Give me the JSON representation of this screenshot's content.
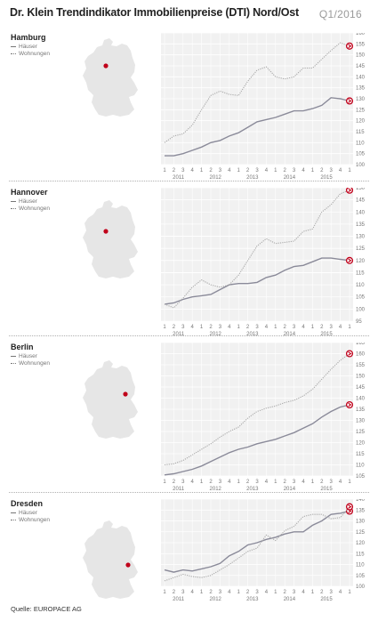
{
  "header": {
    "title": "Dr. Klein Trendindikator Immobilienpreise (DTI) Nord/Ost",
    "period": "Q1/2016"
  },
  "footer": {
    "source": "Quelle: EUROPACE AG"
  },
  "legend": {
    "houses": "Häuser",
    "apartments": "Wohnungen"
  },
  "colors": {
    "houses": "#8a8a99",
    "apartments": "#a9a9a9",
    "marker": "#c0001a",
    "map": "#e6e6e6",
    "plot_bg": "#f1f1f1",
    "grid": "#ffffff"
  },
  "chart_data": [
    {
      "type": "line",
      "city": "Hamburg",
      "x_quarters": [
        "1",
        "2",
        "3",
        "4",
        "1",
        "2",
        "3",
        "4",
        "1",
        "2",
        "3",
        "4",
        "1",
        "2",
        "3",
        "4",
        "1",
        "2",
        "3",
        "4",
        "1"
      ],
      "x_years": [
        "2011",
        "2012",
        "2013",
        "2014",
        "2015"
      ],
      "y_ticks": [
        100,
        105,
        110,
        115,
        120,
        125,
        130,
        135,
        140,
        145,
        150,
        155,
        160
      ],
      "ylim": [
        100,
        160
      ],
      "series": [
        {
          "name": "Häuser",
          "style": "solid",
          "values": [
            104,
            104,
            105,
            106.5,
            108,
            110,
            111,
            113,
            114.5,
            117,
            119.5,
            120.5,
            121.5,
            123,
            124.5,
            124.5,
            125.5,
            127,
            130.5,
            130,
            129
          ]
        },
        {
          "name": "Wohnungen",
          "style": "dotted",
          "values": [
            110,
            113,
            114,
            118,
            125,
            131.5,
            133.5,
            132,
            131.5,
            138,
            143,
            144.5,
            140,
            139,
            140,
            144,
            144,
            148,
            152,
            155.5,
            154
          ]
        }
      ]
    },
    {
      "type": "line",
      "city": "Hannover",
      "x_quarters": [
        "1",
        "2",
        "3",
        "4",
        "1",
        "2",
        "3",
        "4",
        "1",
        "2",
        "3",
        "4",
        "1",
        "2",
        "3",
        "4",
        "1",
        "2",
        "3",
        "4",
        "1"
      ],
      "x_years": [
        "2011",
        "2012",
        "2013",
        "2014",
        "2015"
      ],
      "y_ticks": [
        95,
        100,
        105,
        110,
        115,
        120,
        125,
        130,
        135,
        140,
        145,
        150
      ],
      "ylim": [
        95,
        150
      ],
      "series": [
        {
          "name": "Häuser",
          "style": "solid",
          "values": [
            102,
            102.5,
            104,
            105,
            105.5,
            106,
            108,
            110,
            110.5,
            110.5,
            111,
            113,
            114,
            116,
            117.5,
            118,
            119.5,
            121,
            121,
            120.5,
            120
          ]
        },
        {
          "name": "Wohnungen",
          "style": "dotted",
          "values": [
            102,
            100.5,
            104.5,
            109,
            112,
            110,
            109,
            110,
            114,
            120,
            126,
            129,
            127,
            127.5,
            128,
            132,
            133,
            140,
            143,
            147.5,
            149
          ]
        }
      ]
    },
    {
      "type": "line",
      "city": "Berlin",
      "x_quarters": [
        "1",
        "2",
        "3",
        "4",
        "1",
        "2",
        "3",
        "4",
        "1",
        "2",
        "3",
        "4",
        "1",
        "2",
        "3",
        "4",
        "1",
        "2",
        "3",
        "4",
        "1"
      ],
      "x_years": [
        "2011",
        "2012",
        "2013",
        "2014",
        "2015"
      ],
      "y_ticks": [
        105,
        110,
        115,
        120,
        125,
        130,
        135,
        140,
        145,
        150,
        155,
        160,
        165
      ],
      "ylim": [
        105,
        165
      ],
      "series": [
        {
          "name": "Häuser",
          "style": "solid",
          "values": [
            105.5,
            106,
            107,
            108,
            109.5,
            111.5,
            113.5,
            115.5,
            117,
            118,
            119.5,
            120.5,
            121.5,
            123,
            124.5,
            126.5,
            128.5,
            131.5,
            134,
            136,
            137
          ]
        },
        {
          "name": "Wohnungen",
          "style": "dotted",
          "values": [
            110,
            110.5,
            112,
            114.5,
            117,
            119.5,
            122.5,
            125,
            127,
            131,
            134,
            135.5,
            136.5,
            138,
            139,
            141,
            144,
            148.5,
            153,
            157,
            160
          ]
        }
      ]
    },
    {
      "type": "line",
      "city": "Dresden",
      "x_quarters": [
        "1",
        "2",
        "3",
        "4",
        "1",
        "2",
        "3",
        "4",
        "1",
        "2",
        "3",
        "4",
        "1",
        "2",
        "3",
        "4",
        "1",
        "2",
        "3",
        "4",
        "1"
      ],
      "x_years": [
        "2011",
        "2012",
        "2013",
        "2014",
        "2015"
      ],
      "y_ticks": [
        100,
        105,
        110,
        115,
        120,
        125,
        130,
        135,
        140
      ],
      "ylim": [
        100,
        140
      ],
      "series": [
        {
          "name": "Häuser",
          "style": "solid",
          "values": [
            107.5,
            106.5,
            107.5,
            107,
            108,
            109,
            110.5,
            114,
            116,
            119,
            120,
            121.5,
            122.5,
            124,
            125,
            125,
            128,
            130,
            133,
            133.5,
            134.5
          ]
        },
        {
          "name": "Wohnungen",
          "style": "dotted",
          "values": [
            102.5,
            104,
            105.5,
            104.5,
            104,
            105,
            107.5,
            110,
            113,
            116,
            117.5,
            123.5,
            121,
            125.5,
            127.5,
            132,
            133,
            133,
            131,
            131.5,
            136.5
          ]
        }
      ]
    }
  ]
}
